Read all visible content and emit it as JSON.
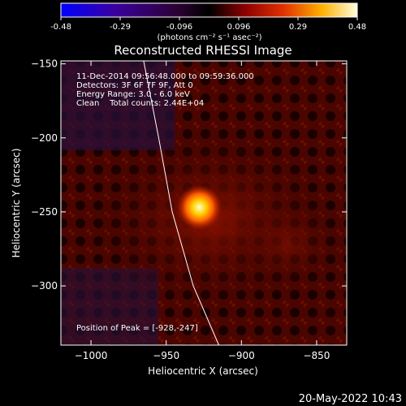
{
  "colorbar": {
    "ticks": [
      "-0.48",
      "-0.29",
      "-0.096",
      "0.096",
      "0.29",
      "0.48"
    ],
    "units_label": "(photons cm⁻² s⁻¹ asec⁻²)",
    "range": [
      -0.48,
      0.48
    ]
  },
  "chart_data": {
    "type": "heatmap",
    "title": "Reconstructed RHESSI Image",
    "xlabel": "Heliocentric X (arcsec)",
    "ylabel": "Heliocentric Y (arcsec)",
    "xlim": [
      -1020,
      -830
    ],
    "ylim": [
      -340,
      -148
    ],
    "x_ticks": [
      -1000,
      -950,
      -900,
      -850
    ],
    "y_ticks": [
      -150,
      -200,
      -250,
      -300
    ],
    "x_tick_labels": [
      "−1000",
      "−950",
      "−900",
      "−850"
    ],
    "y_tick_labels": [
      "−150",
      "−200",
      "−250",
      "−300"
    ],
    "peak": {
      "x": -928,
      "y": -247
    },
    "limb_points": [
      [
        -965,
        -148
      ],
      [
        -955,
        -200
      ],
      [
        -946,
        -250
      ],
      [
        -932,
        -300
      ],
      [
        -915,
        -340
      ]
    ],
    "annotations": [
      "11-Dec-2014 09:56:48.000 to 09:59:36.000",
      "Detectors: 3F 6F 7F 9F, Att 0",
      "Energy Range: 3.0 - 6.0 keV",
      "Clean    Total counts: 2.44E+04"
    ],
    "peak_label": "Position of Peak = [-928,-247]"
  },
  "timestamp": "20-May-2022 10:43"
}
